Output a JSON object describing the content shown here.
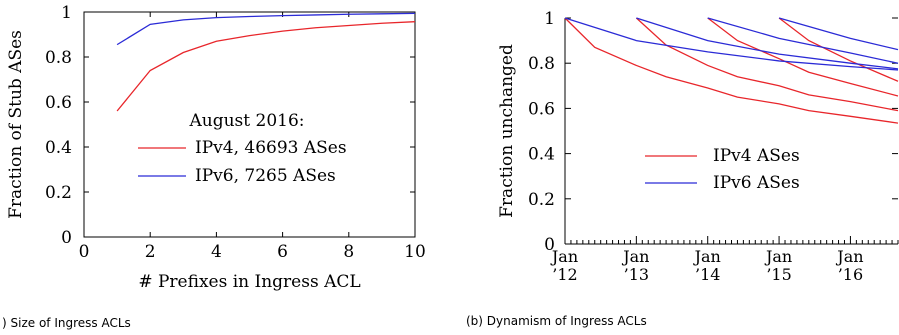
{
  "chart_data": [
    {
      "type": "line",
      "caption": ") Size of Ingress ACLs",
      "xlabel": "# Prefixes in Ingress ACL",
      "ylabel": "Fraction of Stub ASes",
      "xlim": [
        0,
        10
      ],
      "ylim": [
        0,
        1
      ],
      "xticks": [
        0,
        2,
        4,
        6,
        8,
        10
      ],
      "yticks": [
        0,
        0.2,
        0.4,
        0.6,
        0.8,
        1
      ],
      "ytick_labels": [
        "0",
        "0.2",
        "0.4",
        "0.6",
        "0.8",
        "1"
      ],
      "grid": false,
      "legend_title": "August 2016:",
      "legend_position": "center-right",
      "series": [
        {
          "name": "IPv4, 46693 ASes",
          "color": "#e8262b",
          "x": [
            1,
            2,
            3,
            4,
            5,
            6,
            7,
            8,
            9,
            10
          ],
          "y": [
            0.56,
            0.74,
            0.82,
            0.87,
            0.895,
            0.915,
            0.93,
            0.94,
            0.95,
            0.957
          ]
        },
        {
          "name": "IPv6, 7265 ASes",
          "color": "#2b2bd6",
          "x": [
            1,
            2,
            3,
            4,
            5,
            6,
            7,
            8,
            9,
            10
          ],
          "y": [
            0.855,
            0.945,
            0.965,
            0.975,
            0.98,
            0.984,
            0.987,
            0.99,
            0.992,
            0.994
          ]
        }
      ]
    },
    {
      "type": "line",
      "caption": "(b) Dynamism of Ingress ACLs",
      "xlabel": "",
      "ylabel": "Fraction unchanged",
      "xlim": [
        "2012-01",
        "2016-09"
      ],
      "ylim": [
        0,
        1
      ],
      "xticks": [
        {
          "month": "2012-01",
          "line1": "Jan",
          "line2": "’12"
        },
        {
          "month": "2013-01",
          "line1": "Jan",
          "line2": "’13"
        },
        {
          "month": "2014-01",
          "line1": "Jan",
          "line2": "’14"
        },
        {
          "month": "2015-01",
          "line1": "Jan",
          "line2": "’15"
        },
        {
          "month": "2016-01",
          "line1": "Jan",
          "line2": "’16"
        }
      ],
      "yticks": [
        0,
        0.2,
        0.4,
        0.6,
        0.8,
        1
      ],
      "ytick_labels": [
        "0",
        "0.2",
        "0.4",
        "0.6",
        "0.8",
        "1"
      ],
      "minor_xticks": "monthly",
      "grid": false,
      "legend_position": "lower-right",
      "legend": [
        {
          "name": "IPv4 ASes",
          "color": "#e8262b"
        },
        {
          "name": "IPv6 ASes",
          "color": "#2b2bd6"
        }
      ],
      "series": [
        {
          "name": "IPv4 ASes",
          "color": "#e8262b",
          "x": [
            "2012-01",
            "2012-06",
            "2013-01",
            "2013-06",
            "2014-01",
            "2014-06",
            "2015-01",
            "2015-06",
            "2016-01",
            "2016-09"
          ],
          "y": [
            1.0,
            0.87,
            0.79,
            0.74,
            0.69,
            0.65,
            0.62,
            0.59,
            0.565,
            0.535
          ]
        },
        {
          "name": "IPv4 ASes",
          "color": "#e8262b",
          "x": [
            "2013-01",
            "2013-06",
            "2014-01",
            "2014-06",
            "2015-01",
            "2015-06",
            "2016-01",
            "2016-09"
          ],
          "y": [
            1.0,
            0.88,
            0.79,
            0.74,
            0.7,
            0.66,
            0.63,
            0.59
          ]
        },
        {
          "name": "IPv4 ASes",
          "color": "#e8262b",
          "x": [
            "2014-01",
            "2014-06",
            "2015-01",
            "2015-06",
            "2016-01",
            "2016-09"
          ],
          "y": [
            1.0,
            0.9,
            0.82,
            0.76,
            0.71,
            0.655
          ]
        },
        {
          "name": "IPv4 ASes",
          "color": "#e8262b",
          "x": [
            "2015-01",
            "2015-06",
            "2016-01",
            "2016-09"
          ],
          "y": [
            1.0,
            0.9,
            0.81,
            0.72
          ]
        },
        {
          "name": "IPv6 ASes",
          "color": "#2b2bd6",
          "x": [
            "2012-01",
            "2013-01",
            "2014-01",
            "2015-01",
            "2016-01",
            "2016-09"
          ],
          "y": [
            1.0,
            0.9,
            0.85,
            0.81,
            0.785,
            0.77
          ]
        },
        {
          "name": "IPv6 ASes",
          "color": "#2b2bd6",
          "x": [
            "2013-01",
            "2014-01",
            "2015-01",
            "2016-01",
            "2016-09"
          ],
          "y": [
            1.0,
            0.9,
            0.84,
            0.8,
            0.775
          ]
        },
        {
          "name": "IPv6 ASes",
          "color": "#2b2bd6",
          "x": [
            "2014-01",
            "2015-01",
            "2016-01",
            "2016-09"
          ],
          "y": [
            1.0,
            0.91,
            0.845,
            0.8
          ]
        },
        {
          "name": "IPv6 ASes",
          "color": "#2b2bd6",
          "x": [
            "2015-01",
            "2016-01",
            "2016-09"
          ],
          "y": [
            1.0,
            0.91,
            0.86
          ]
        }
      ]
    }
  ]
}
